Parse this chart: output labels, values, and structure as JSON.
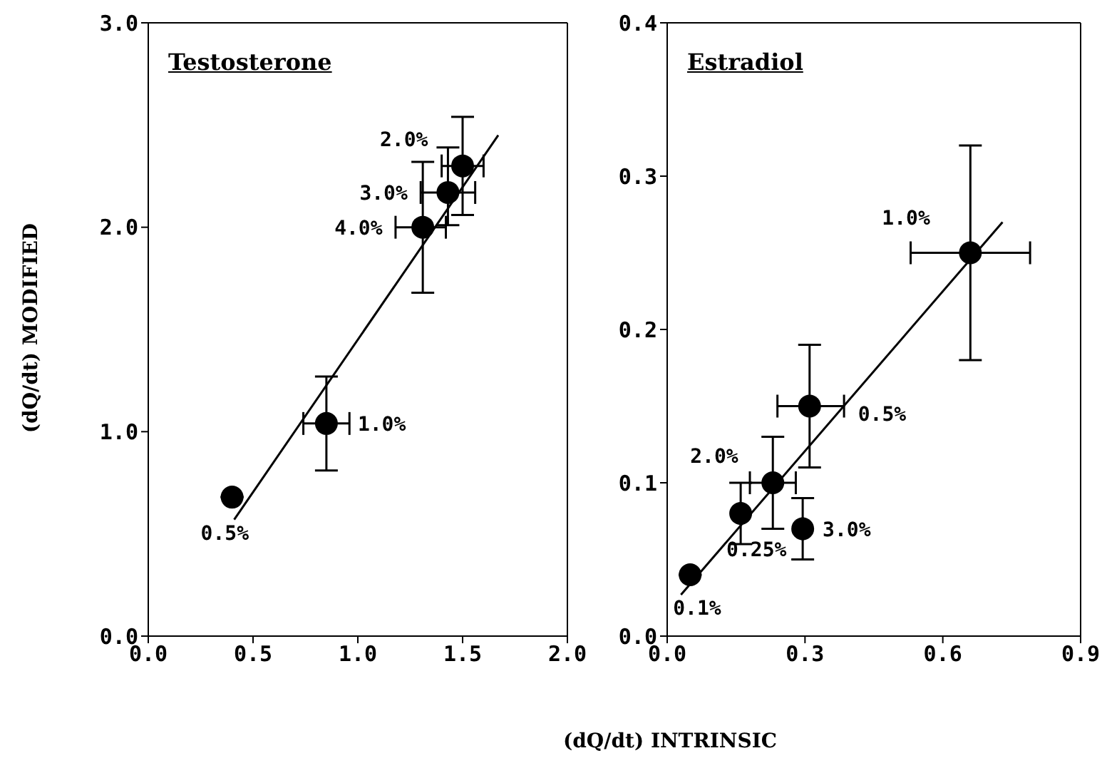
{
  "chart_data": [
    {
      "type": "scatter",
      "title": "Testosterone",
      "ylabel": "(dQ/dt) MODIFIED",
      "xlabel": "(dQ/dt) INTRINSIC",
      "xlim": [
        0,
        2
      ],
      "xticks": [
        {
          "value": 0,
          "label": "0.0"
        },
        0.5,
        {
          "value": 1,
          "label": "1.0"
        },
        1.5,
        {
          "value": 2,
          "label": "2.0"
        }
      ],
      "ylim": [
        0,
        3
      ],
      "yticks": [
        {
          "value": 0,
          "label": "0.0"
        },
        {
          "value": 1,
          "label": "1.0"
        },
        {
          "value": 2,
          "label": "2.0"
        },
        {
          "value": 3,
          "label": "3.0"
        }
      ],
      "series": [
        {
          "marker": "circle",
          "color": "#000000",
          "x": [
            0.4,
            0.85,
            1.31,
            1.43,
            1.5
          ],
          "values": [
            0.68,
            1.04,
            2.0,
            2.17,
            2.3
          ],
          "errors": [
            null,
            [
              0.81,
              1.27
            ],
            [
              1.68,
              2.32
            ],
            [
              2.01,
              2.39
            ],
            [
              2.06,
              2.54
            ]
          ],
          "xerrors": [
            null,
            [
              0.74,
              0.96
            ],
            [
              1.18,
              1.42
            ],
            [
              1.3,
              1.56
            ],
            [
              1.4,
              1.6
            ]
          ]
        },
        {
          "type": "line",
          "color": "#000000",
          "x": [
            0.41,
            1.67
          ],
          "values": [
            0.57,
            2.45
          ]
        }
      ],
      "annotations": [
        {
          "text": "0.5%",
          "x": 0.4,
          "y": 0.68
        },
        {
          "text": "1.0%",
          "x": 0.85,
          "y": 1.04
        },
        {
          "text": "4.0%",
          "x": 1.31,
          "y": 2.0
        },
        {
          "text": "3.0%",
          "x": 1.43,
          "y": 2.17
        },
        {
          "text": "2.0%",
          "x": 1.5,
          "y": 2.3
        }
      ]
    },
    {
      "type": "scatter",
      "title": "Estradiol",
      "xlim": [
        0,
        0.9
      ],
      "xticks": [
        {
          "value": 0,
          "label": "0.0"
        },
        0.3,
        0.6,
        0.9
      ],
      "ylim": [
        0,
        0.4
      ],
      "yticks": [
        {
          "value": 0,
          "label": "0.0"
        },
        0.1,
        0.2,
        0.3,
        0.4
      ],
      "series": [
        {
          "marker": "circle",
          "color": "#000000",
          "x": [
            0.05,
            0.16,
            0.23,
            0.295,
            0.31,
            0.66
          ],
          "values": [
            0.04,
            0.08,
            0.1,
            0.07,
            0.15,
            0.25
          ],
          "errors": [
            null,
            [
              0.06,
              0.1
            ],
            [
              0.07,
              0.13
            ],
            [
              0.05,
              0.09
            ],
            [
              0.11,
              0.19
            ],
            [
              0.18,
              0.32
            ]
          ],
          "xerrors": [
            null,
            null,
            [
              0.18,
              0.28
            ],
            null,
            [
              0.24,
              0.385
            ],
            [
              0.53,
              0.79
            ]
          ]
        },
        {
          "type": "line",
          "color": "#000000",
          "x": [
            0.03,
            0.73
          ],
          "values": [
            0.027,
            0.27
          ]
        }
      ],
      "annotations": [
        {
          "text": "0.1%",
          "x": 0.05,
          "y": 0.04
        },
        {
          "text": "0.25%",
          "x": 0.16,
          "y": 0.08
        },
        {
          "text": "2.0%",
          "x": 0.23,
          "y": 0.1
        },
        {
          "text": "3.0%",
          "x": 0.295,
          "y": 0.07
        },
        {
          "text": "0.5%",
          "x": 0.31,
          "y": 0.15
        },
        {
          "text": "1.0%",
          "x": 0.66,
          "y": 0.25
        }
      ]
    }
  ]
}
